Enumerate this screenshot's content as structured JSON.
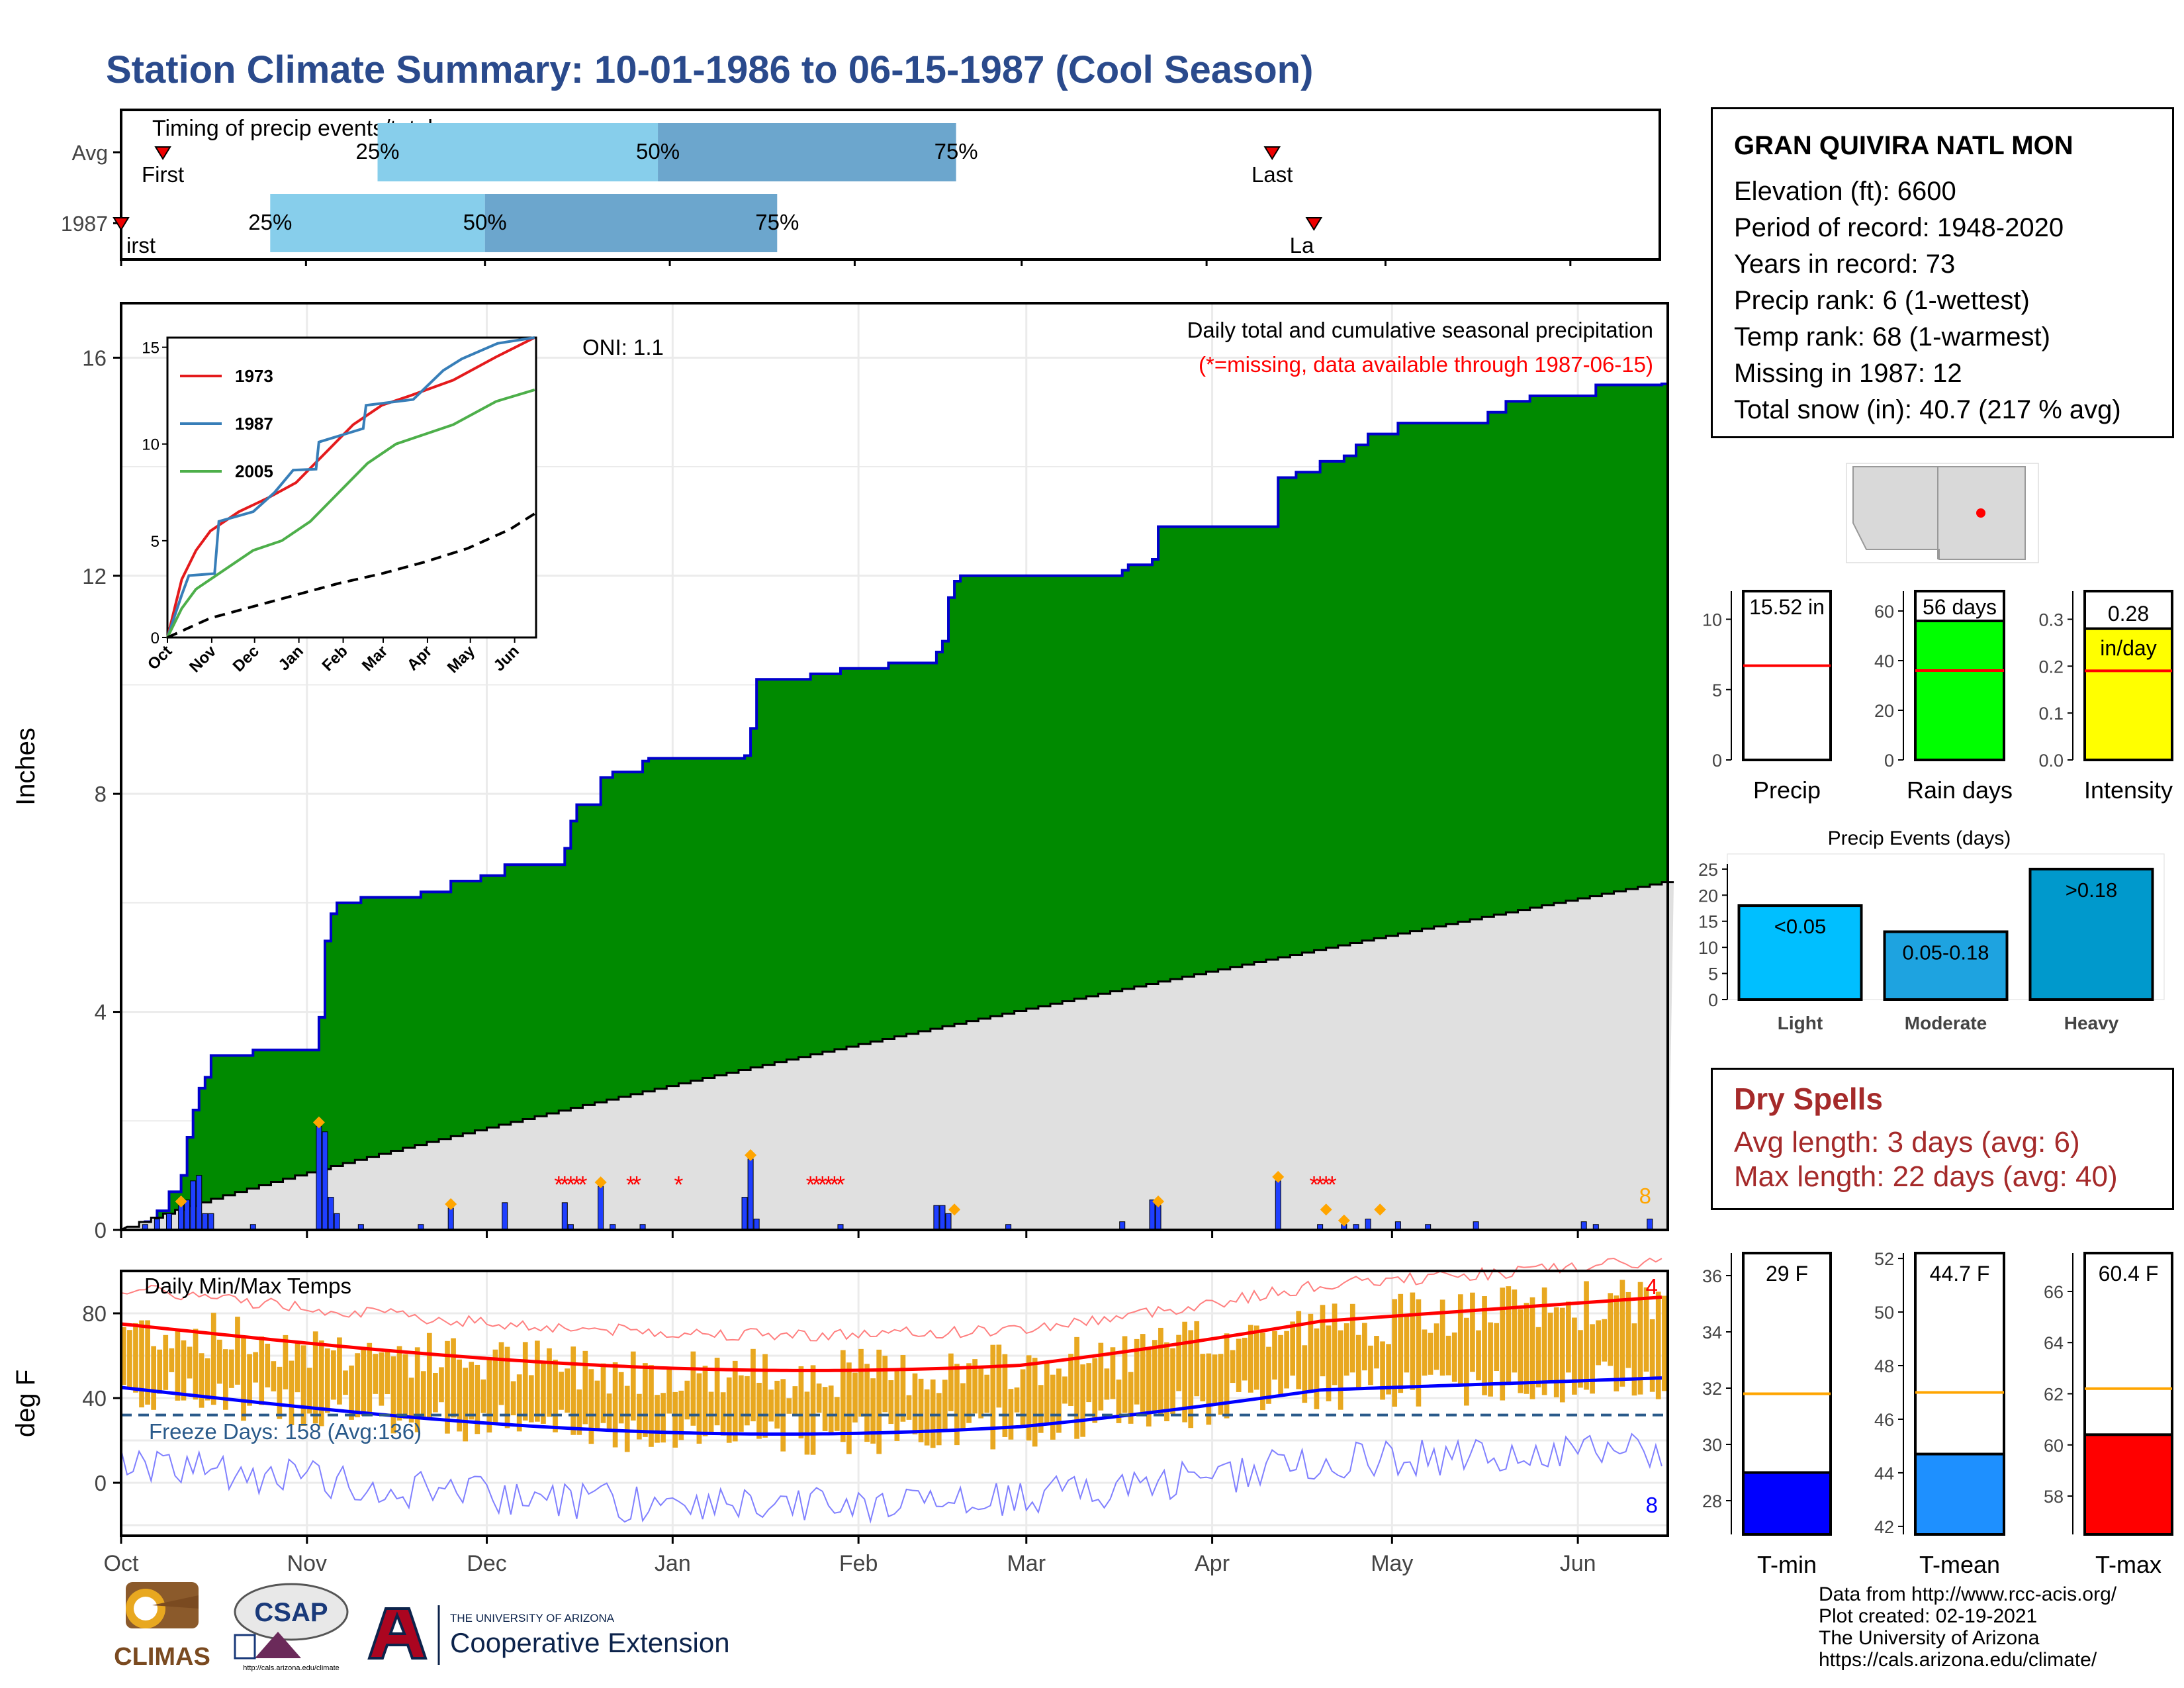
{
  "title": "Station Climate Summary: 10-01-1986 to 06-15-1987 (Cool Season)",
  "station": {
    "name": "GRAN QUIVIRA NATL MON",
    "lines": [
      "Elevation (ft): 6600",
      "Period of record: 1948-2020",
      "Years in record: 73",
      "Precip rank: 6 (1-wettest)",
      "Temp rank: 68 (1-warmest)",
      "Missing in 1987: 12",
      "Total snow (in): 40.7 (217 % avg)"
    ]
  },
  "dry_spells": {
    "title": "Dry Spells",
    "avg": "Avg length: 3 days (avg: 6)",
    "max": "Max length: 22 days (avg: 40)"
  },
  "credits": [
    "Data from http://www.rcc-acis.org/",
    "Plot created: 02-19-2021",
    "The University of Arizona",
    "https://cals.arizona.edu/climate/"
  ],
  "logos": {
    "climas": "CLIMAS",
    "csap": "CSAP",
    "csap_url": "http://cals.arizona.edu/climate",
    "ua_small": "THE UNIVERSITY OF ARIZONA",
    "ua_big": "Cooperative Extension"
  },
  "colors": {
    "cum": "#008a00",
    "cum_line": "#0000cc",
    "avg": "#e0e0e0",
    "bar": "#1f3fff",
    "tbar": "#e8a820",
    "tmax": "#ff0000",
    "tmin": "#0000ff",
    "light": "#00bfff",
    "moderate": "#1ea3e0",
    "heavy": "#0099cc",
    "timing_light": "#87ceeb",
    "timing_dark": "#6ca6cd"
  },
  "chart_data": [
    {
      "id": "timing",
      "type": "bar",
      "title": "Timing of precip events/totals",
      "rows": [
        {
          "label": "Avg",
          "first_day": 7,
          "q25": 43,
          "q50": 90,
          "q75": 140,
          "last_day": 193,
          "first_text": "First",
          "last_text": "Last",
          "p25": "25%",
          "p50": "50%",
          "p75": "75%"
        },
        {
          "label": "1987",
          "first_day": 0,
          "q25": 25,
          "q50": 61,
          "q75": 110,
          "last_day": 200,
          "first_text": "irst",
          "last_text": "La",
          "p25": "25%",
          "p50": "50%",
          "p75": "75%"
        }
      ]
    },
    {
      "id": "precip",
      "type": "area",
      "title": "Daily total and cumulative seasonal precipitation",
      "subtitle": "(*=missing, data available through 1987-06-15)",
      "annotation": "ONI: 1.1",
      "ylabel": "Inches",
      "ylim": [
        0,
        17
      ],
      "yticks": [
        0,
        4,
        8,
        12,
        16
      ],
      "corner_count": "8",
      "cum_steps": [
        [
          0,
          0
        ],
        [
          4,
          0.15
        ],
        [
          6,
          0.35
        ],
        [
          8,
          0.7
        ],
        [
          10,
          1.0
        ],
        [
          11,
          1.7
        ],
        [
          12,
          2.2
        ],
        [
          13,
          2.6
        ],
        [
          14,
          2.8
        ],
        [
          15,
          3.2
        ],
        [
          22,
          3.3
        ],
        [
          32,
          3.3
        ],
        [
          33,
          3.9
        ],
        [
          34,
          5.3
        ],
        [
          35,
          5.8
        ],
        [
          36,
          6.0
        ],
        [
          40,
          6.1
        ],
        [
          48,
          6.1
        ],
        [
          50,
          6.2
        ],
        [
          55,
          6.4
        ],
        [
          60,
          6.5
        ],
        [
          64,
          6.7
        ],
        [
          69,
          6.7
        ],
        [
          74,
          7.0
        ],
        [
          75,
          7.5
        ],
        [
          76,
          7.8
        ],
        [
          80,
          8.3
        ],
        [
          82,
          8.4
        ],
        [
          87,
          8.6
        ],
        [
          88,
          8.65
        ],
        [
          96,
          8.65
        ],
        [
          104,
          8.7
        ],
        [
          105,
          9.2
        ],
        [
          106,
          10.1
        ],
        [
          115,
          10.2
        ],
        [
          120,
          10.3
        ],
        [
          128,
          10.4
        ],
        [
          136,
          10.6
        ],
        [
          137,
          10.8
        ],
        [
          138,
          11.6
        ],
        [
          139,
          11.9
        ],
        [
          140,
          12.0
        ],
        [
          148,
          12.0
        ],
        [
          152,
          12.0
        ],
        [
          158,
          12.0
        ],
        [
          167,
          12.1
        ],
        [
          168,
          12.2
        ],
        [
          172,
          12.3
        ],
        [
          173,
          12.9
        ],
        [
          175,
          12.9
        ],
        [
          192,
          12.9
        ],
        [
          193,
          13.8
        ],
        [
          196,
          13.9
        ],
        [
          200,
          14.1
        ],
        [
          204,
          14.2
        ],
        [
          206,
          14.4
        ],
        [
          208,
          14.6
        ],
        [
          211,
          14.6
        ],
        [
          213,
          14.8
        ],
        [
          216,
          14.8
        ],
        [
          225,
          14.8
        ],
        [
          228,
          15.0
        ],
        [
          231,
          15.2
        ],
        [
          235,
          15.3
        ],
        [
          241,
          15.3
        ],
        [
          246,
          15.5
        ],
        [
          257,
          15.52
        ]
      ],
      "avg_end": 6.4,
      "daily": [
        [
          4,
          0.1
        ],
        [
          6,
          0.2
        ],
        [
          8,
          0.3
        ],
        [
          10,
          0.45
        ],
        [
          11,
          0.55
        ],
        [
          12,
          0.9
        ],
        [
          13,
          1.0
        ],
        [
          14,
          0.3
        ],
        [
          15,
          0.3
        ],
        [
          22,
          0.1
        ],
        [
          33,
          1.9
        ],
        [
          34,
          1.8
        ],
        [
          35,
          0.6
        ],
        [
          36,
          0.3
        ],
        [
          40,
          0.1
        ],
        [
          50,
          0.1
        ],
        [
          55,
          0.4
        ],
        [
          64,
          0.5
        ],
        [
          74,
          0.5
        ],
        [
          75,
          0.1
        ],
        [
          80,
          0.8
        ],
        [
          82,
          0.1
        ],
        [
          87,
          0.1
        ],
        [
          104,
          0.6
        ],
        [
          105,
          1.3
        ],
        [
          106,
          0.2
        ],
        [
          120,
          0.1
        ],
        [
          136,
          0.45
        ],
        [
          137,
          0.45
        ],
        [
          138,
          0.3
        ],
        [
          148,
          0.1
        ],
        [
          167,
          0.15
        ],
        [
          172,
          0.55
        ],
        [
          173,
          0.45
        ],
        [
          193,
          0.9
        ],
        [
          200,
          0.1
        ],
        [
          204,
          0.1
        ],
        [
          206,
          0.1
        ],
        [
          208,
          0.2
        ],
        [
          213,
          0.15
        ],
        [
          218,
          0.1
        ],
        [
          226,
          0.15
        ],
        [
          244,
          0.15
        ],
        [
          246,
          0.1
        ],
        [
          255,
          0.2
        ]
      ],
      "marker_days": [
        10,
        33,
        55,
        80,
        105,
        139,
        173,
        193,
        201,
        204,
        210
      ],
      "missing_days": [
        [
          73,
          77
        ],
        [
          85,
          86
        ],
        [
          93,
          93
        ],
        [
          115,
          120
        ],
        [
          199,
          202
        ]
      ]
    },
    {
      "id": "inset",
      "type": "line",
      "ylim": [
        0,
        15.5
      ],
      "yticks": [
        0,
        5,
        10,
        15
      ],
      "xticks": [
        "Oct",
        "Nov",
        "Dec",
        "Jan",
        "Feb",
        "Mar",
        "Apr",
        "May",
        "Jun"
      ],
      "series": [
        {
          "name": "1973",
          "color": "#e41a1c",
          "points": [
            [
              0,
              0
            ],
            [
              5,
              1.5
            ],
            [
              10,
              3
            ],
            [
              20,
              4.5
            ],
            [
              30,
              5.5
            ],
            [
              50,
              6.5
            ],
            [
              70,
              7.2
            ],
            [
              90,
              8
            ],
            [
              110,
              9.5
            ],
            [
              130,
              11
            ],
            [
              150,
              12
            ],
            [
              170,
              12.5
            ],
            [
              200,
              13.3
            ],
            [
              230,
              14.5
            ],
            [
              257,
              16.0
            ]
          ]
        },
        {
          "name": "1987",
          "color": "#377eb8",
          "points": [
            [
              0,
              0
            ],
            [
              10,
              2.2
            ],
            [
              15,
              3.2
            ],
            [
              33,
              3.3
            ],
            [
              36,
              6
            ],
            [
              60,
              6.5
            ],
            [
              75,
              7.5
            ],
            [
              88,
              8.65
            ],
            [
              104,
              8.7
            ],
            [
              106,
              10.1
            ],
            [
              137,
              10.8
            ],
            [
              139,
              12
            ],
            [
              172,
              12.3
            ],
            [
              193,
              13.8
            ],
            [
              206,
              14.4
            ],
            [
              231,
              15.2
            ],
            [
              257,
              15.52
            ]
          ]
        },
        {
          "name": "2005",
          "color": "#4daf4a",
          "points": [
            [
              0,
              0
            ],
            [
              10,
              1.5
            ],
            [
              20,
              2.5
            ],
            [
              40,
              3.5
            ],
            [
              60,
              4.5
            ],
            [
              80,
              5
            ],
            [
              100,
              6
            ],
            [
              120,
              7.5
            ],
            [
              140,
              9
            ],
            [
              160,
              10
            ],
            [
              180,
              10.5
            ],
            [
              200,
              11
            ],
            [
              230,
              12.2
            ],
            [
              257,
              12.8
            ]
          ]
        },
        {
          "name": "",
          "color": "#000000",
          "dash": true,
          "points": [
            [
              0,
              0
            ],
            [
              30,
              1
            ],
            [
              60,
              1.6
            ],
            [
              90,
              2.2
            ],
            [
              120,
              2.8
            ],
            [
              150,
              3.3
            ],
            [
              180,
              3.9
            ],
            [
              210,
              4.6
            ],
            [
              240,
              5.6
            ],
            [
              257,
              6.4
            ]
          ]
        }
      ]
    },
    {
      "id": "temps",
      "type": "bar",
      "title": "Daily Min/Max Temps",
      "ylabel": "deg F",
      "ylim": [
        -25,
        100
      ],
      "yticks": [
        0,
        40,
        80
      ],
      "freeze_text": "Freeze Days: 158 (Avg:136)",
      "freeze_line": 32,
      "max_count": "4",
      "min_count": "8",
      "xticks": [
        "Oct",
        "Nov",
        "Dec",
        "Jan",
        "Feb",
        "Mar",
        "Apr",
        "May",
        "Jun"
      ],
      "month_days": [
        0,
        31,
        61,
        92,
        123,
        151,
        182,
        212,
        243
      ]
    },
    {
      "id": "precip-total",
      "type": "bar",
      "value": 15.52,
      "value_text": "15.52 in",
      "avg": 6.7,
      "label": "Precip",
      "ylim": [
        0,
        12
      ],
      "yticks": [
        0,
        5,
        10
      ],
      "color": "#ffffff"
    },
    {
      "id": "rain-days",
      "type": "bar",
      "value": 56,
      "value_text": "56 days",
      "avg": 36,
      "label": "Rain days",
      "ylim": [
        0,
        68
      ],
      "yticks": [
        0,
        20,
        40,
        60
      ],
      "color": "#00ff00"
    },
    {
      "id": "intensity",
      "type": "bar",
      "value": 0.28,
      "value_text": "0.28",
      "unit": "in/day",
      "avg": 0.19,
      "label": "Intensity",
      "ylim": [
        0,
        0.36
      ],
      "yticks": [
        "0.0",
        "0.1",
        "0.2",
        "0.3"
      ],
      "color": "#ffff00"
    },
    {
      "id": "events",
      "type": "bar",
      "title": "Precip Events (days)",
      "categories": [
        "Light",
        "Moderate",
        "Heavy"
      ],
      "values": [
        18,
        13,
        25
      ],
      "bar_labels": [
        "<0.05",
        "0.05-0.18",
        ">0.18"
      ],
      "ylim": [
        0,
        26
      ],
      "yticks": [
        0,
        5,
        10,
        15,
        20,
        25
      ]
    },
    {
      "id": "tmin",
      "type": "bar",
      "value": 29,
      "value_text": "29 F",
      "avg": 31.8,
      "label": "T-min",
      "ylim": [
        26.8,
        36.8
      ],
      "yticks": [
        28,
        30,
        32,
        34,
        36
      ],
      "color": "#0000ff"
    },
    {
      "id": "tmean",
      "type": "bar",
      "value": 44.7,
      "value_text": "44.7 F",
      "avg": 47,
      "label": "T-mean",
      "ylim": [
        41.7,
        52.2
      ],
      "yticks": [
        42,
        44,
        46,
        48,
        50,
        52
      ],
      "color": "#1e90ff"
    },
    {
      "id": "tmax",
      "type": "bar",
      "value": 60.4,
      "value_text": "60.4 F",
      "avg": 62.2,
      "label": "T-max",
      "ylim": [
        56.5,
        67.5
      ],
      "yticks": [
        58,
        60,
        62,
        64,
        66
      ],
      "color": "#ff0000"
    }
  ]
}
